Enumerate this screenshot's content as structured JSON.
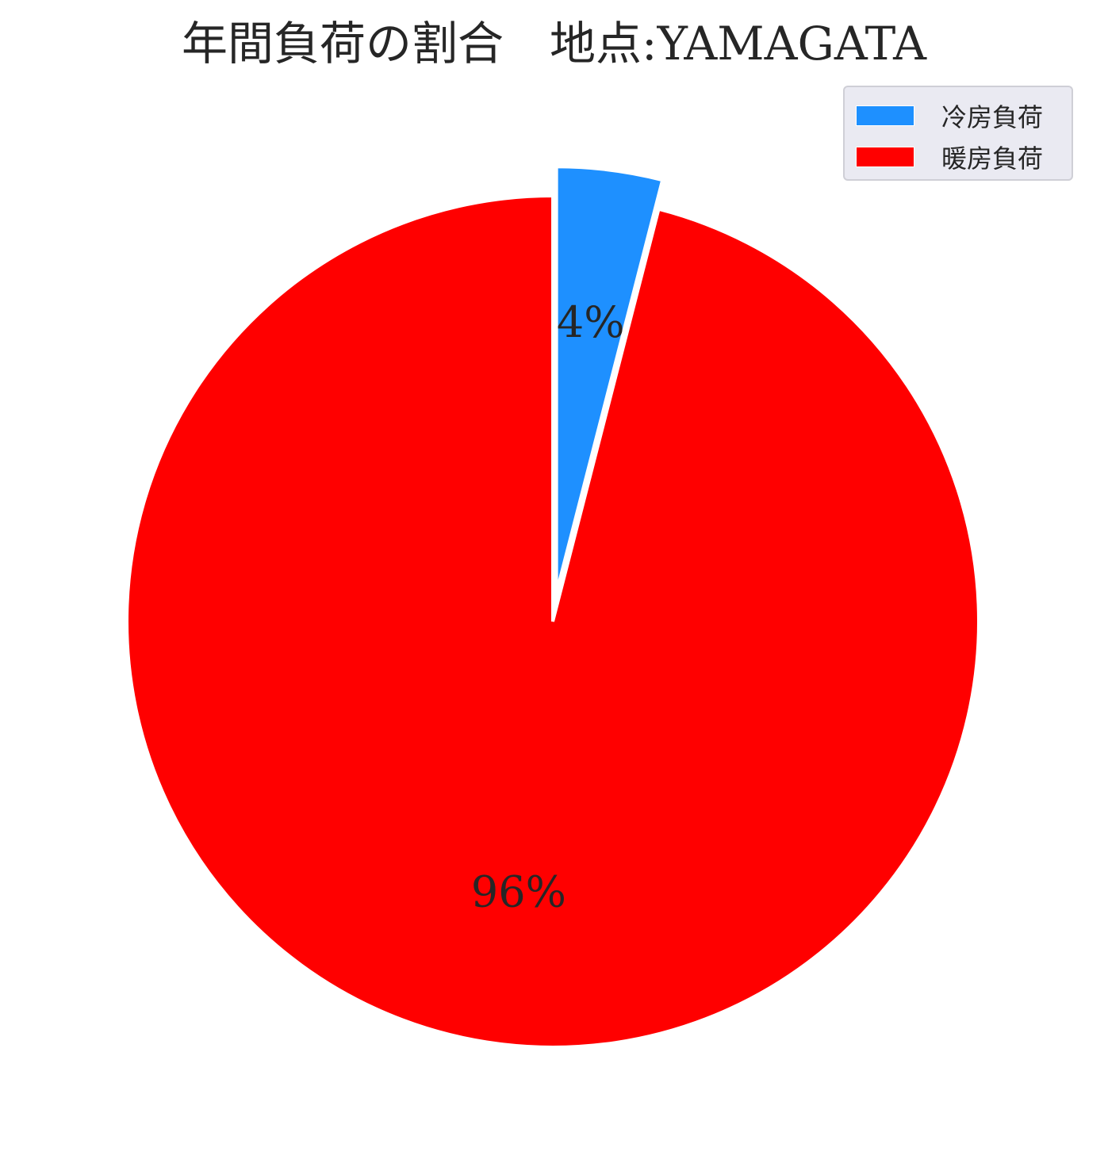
{
  "chart_data": {
    "type": "pie",
    "title": "年間負荷の割合　地点:YAMAGATA",
    "slices": [
      {
        "label": "冷房負荷",
        "value": 4,
        "pct_label": "4%",
        "color": "#1e90ff",
        "exploded": true
      },
      {
        "label": "暖房負荷",
        "value": 96,
        "pct_label": "96%",
        "color": "#ff0000",
        "exploded": false
      }
    ],
    "start_angle": "12 o'clock",
    "direction": "clockwise",
    "legend_position": "top-right"
  }
}
